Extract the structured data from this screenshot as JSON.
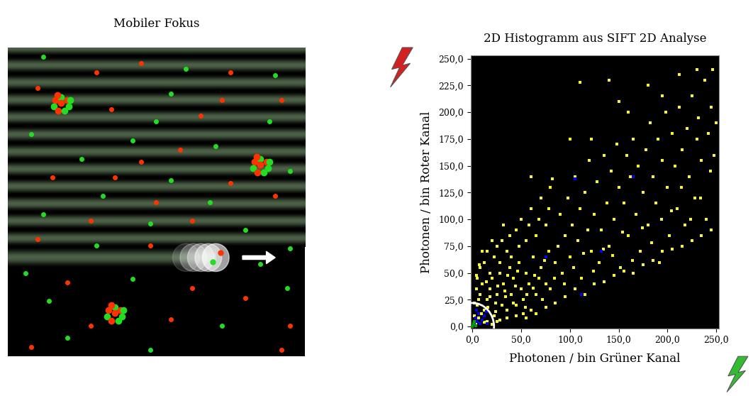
{
  "illustration": {
    "title": "Mobiler Fokus"
  },
  "chart_data": {
    "type": "scatter",
    "title": "2D Histogramm aus SIFT 2D Analyse",
    "x_label": "Photonen / bin Grüner Kanal",
    "y_label": "Photonen / bin Roter Kanal",
    "xlim": [
      -2,
      253
    ],
    "ylim": [
      -2,
      253
    ],
    "xticks": [
      {
        "value": 0,
        "label": "0,0"
      },
      {
        "value": 50,
        "label": "50,0"
      },
      {
        "value": 100,
        "label": "100,0"
      },
      {
        "value": 150,
        "label": "150,0"
      },
      {
        "value": 200,
        "label": "200,0"
      },
      {
        "value": 250,
        "label": "250,0"
      }
    ],
    "yticks": [
      {
        "value": 0,
        "label": "0,0"
      },
      {
        "value": 25,
        "label": "25,0"
      },
      {
        "value": 50,
        "label": "50,0"
      },
      {
        "value": 75,
        "label": "75,0"
      },
      {
        "value": 100,
        "label": "100,0"
      },
      {
        "value": 125,
        "label": "125,0"
      },
      {
        "value": 150,
        "label": "150,0"
      },
      {
        "value": 175,
        "label": "175,0"
      },
      {
        "value": 200,
        "label": "200,0"
      },
      {
        "value": 225,
        "label": "225,0"
      },
      {
        "value": 250,
        "label": "250,0"
      }
    ],
    "marker": "square",
    "grid": false,
    "circle_radius": 22,
    "series": [
      {
        "color": "#f5f534",
        "x": [
          5,
          8,
          10,
          12,
          15,
          18,
          20,
          22,
          25,
          28,
          30,
          32,
          35,
          38,
          40,
          42,
          45,
          48,
          50,
          52,
          55,
          58,
          60,
          62,
          65,
          68,
          70,
          72,
          75,
          78,
          80,
          5,
          8,
          12,
          15,
          18,
          22,
          25,
          28,
          30,
          35,
          38,
          40,
          45,
          48,
          50,
          55,
          58,
          60,
          65,
          68,
          70,
          75,
          78,
          80,
          85,
          88,
          90,
          92,
          95,
          98,
          100,
          102,
          105,
          108,
          110,
          112,
          115,
          118,
          120,
          122,
          125,
          128,
          130,
          132,
          135,
          138,
          140,
          142,
          145,
          148,
          150,
          152,
          155,
          158,
          160,
          162,
          165,
          168,
          170,
          172,
          175,
          178,
          180,
          182,
          185,
          188,
          190,
          192,
          195,
          198,
          200,
          202,
          205,
          208,
          210,
          212,
          215,
          218,
          220,
          222,
          225,
          228,
          230,
          232,
          235,
          238,
          240,
          242,
          245,
          248,
          250,
          246,
          230,
          212,
          195,
          110,
          140,
          180,
          150,
          160,
          122,
          100,
          82,
          60,
          32,
          20,
          10,
          15,
          25,
          35,
          45,
          55,
          65,
          75,
          85,
          95,
          105,
          115,
          125,
          135,
          145,
          155,
          165,
          175,
          185,
          195,
          205,
          215,
          225,
          235,
          245,
          2,
          4,
          6,
          14,
          24,
          34,
          44,
          54,
          64,
          74,
          84,
          94,
          104,
          114,
          124,
          134,
          144,
          154,
          164,
          174,
          184,
          194,
          204,
          214,
          224,
          234,
          244,
          3,
          6,
          9,
          12,
          16,
          20,
          24,
          28,
          2,
          4,
          7,
          18,
          26,
          33,
          36,
          42,
          46,
          52,
          56,
          62
        ],
        "y": [
          20,
          30,
          40,
          15,
          25,
          35,
          45,
          10,
          30,
          50,
          20,
          40,
          15,
          55,
          30,
          45,
          20,
          60,
          35,
          25,
          50,
          40,
          15,
          65,
          30,
          45,
          55,
          25,
          40,
          70,
          35,
          45,
          55,
          60,
          70,
          50,
          65,
          75,
          60,
          80,
          70,
          85,
          65,
          90,
          75,
          100,
          80,
          95,
          110,
          85,
          100,
          120,
          95,
          110,
          130,
          60,
          75,
          105,
          50,
          85,
          120,
          65,
          95,
          140,
          80,
          110,
          45,
          125,
          90,
          155,
          70,
          105,
          135,
          60,
          90,
          160,
          115,
          75,
          145,
          100,
          170,
          130,
          55,
          115,
          160,
          85,
          140,
          175,
          105,
          150,
          70,
          125,
          165,
          95,
          190,
          140,
          115,
          175,
          60,
          155,
          200,
          130,
          85,
          180,
          150,
          110,
          205,
          165,
          95,
          185,
          140,
          215,
          120,
          175,
          195,
          155,
          230,
          100,
          180,
          205,
          160,
          190,
          240,
          240,
          235,
          215,
          228,
          230,
          225,
          210,
          200,
          175,
          175,
          138,
          140,
          95,
          80,
          70,
          5,
          5,
          8,
          10,
          8,
          12,
          18,
          22,
          28,
          35,
          30,
          40,
          42,
          48,
          52,
          50,
          58,
          62,
          70,
          72,
          75,
          80,
          85,
          90,
          10,
          35,
          25,
          42,
          22,
          28,
          38,
          18,
          48,
          62,
          45,
          40,
          55,
          68,
          52,
          72,
          66,
          88,
          62,
          92,
          78,
          100,
          108,
          130,
          100,
          120,
          145,
          3,
          8,
          12,
          4,
          18,
          2,
          14,
          6,
          22,
          48,
          58,
          28,
          38,
          33,
          48,
          22,
          52,
          12,
          30,
          36
        ]
      },
      {
        "color": "#0000ff",
        "x": [
          2,
          5,
          8,
          3,
          10,
          6,
          12,
          15,
          4,
          14,
          75,
          105,
          112,
          132,
          165
        ],
        "y": [
          2,
          5,
          3,
          8,
          6,
          12,
          10,
          3,
          15,
          14,
          65,
          138,
          30,
          70,
          140
        ]
      },
      {
        "color": "#00a000",
        "x": [
          0,
          1,
          3,
          2
        ],
        "y": [
          0,
          3,
          1,
          5
        ]
      }
    ]
  }
}
